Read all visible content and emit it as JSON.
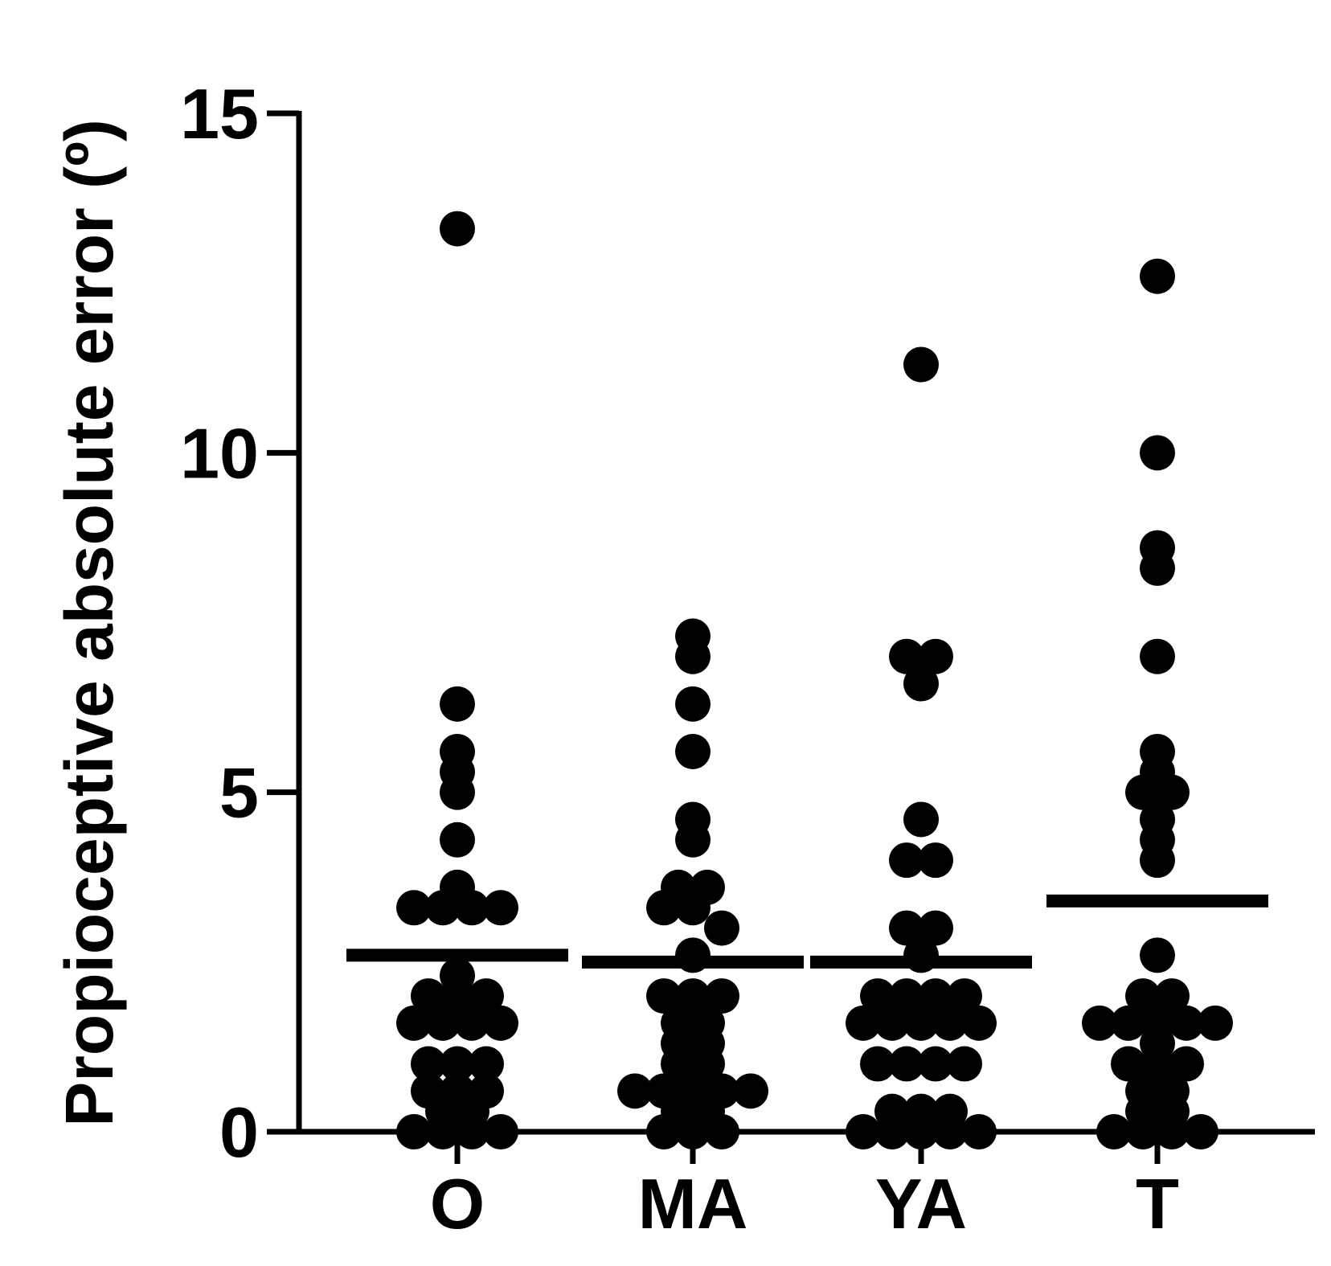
{
  "chart_data": {
    "type": "scatter",
    "ylabel": "Propioceptive absolute error (º)",
    "ylim": [
      0,
      15
    ],
    "yticks": [
      0,
      5,
      10,
      15
    ],
    "grid": false,
    "categories": [
      "O",
      "MA",
      "YA",
      "T"
    ],
    "colors": {
      "points": "#000000",
      "axis": "#000000"
    },
    "series": [
      {
        "category": "O",
        "mean": 2.6,
        "points": [
          13.3,
          6.3,
          5.6,
          5.3,
          5.0,
          4.3,
          3.6,
          3.3,
          3.3,
          3.3,
          3.3,
          2.3,
          2.0,
          2.0,
          2.0,
          1.6,
          1.6,
          1.6,
          1.6,
          1.0,
          1.0,
          1.0,
          0.6,
          0.6,
          0.6,
          0.3,
          0.3,
          0.0,
          0.0,
          0.0,
          0.0
        ]
      },
      {
        "category": "MA",
        "mean": 2.5,
        "points": [
          7.3,
          7.0,
          6.3,
          5.6,
          4.6,
          4.3,
          3.6,
          3.6,
          3.3,
          3.3,
          3.0,
          2.6,
          2.0,
          2.0,
          2.0,
          1.6,
          1.6,
          1.3,
          1.3,
          1.0,
          1.0,
          0.6,
          0.6,
          0.6,
          0.6,
          0.6,
          0.3,
          0.3,
          0.0,
          0.0,
          0.0
        ]
      },
      {
        "category": "YA",
        "mean": 2.5,
        "points": [
          11.3,
          7.0,
          7.0,
          6.6,
          4.6,
          4.0,
          4.0,
          3.0,
          3.0,
          2.6,
          2.0,
          2.0,
          2.0,
          2.0,
          1.6,
          1.6,
          1.6,
          1.6,
          1.6,
          1.0,
          1.0,
          1.0,
          1.0,
          0.3,
          0.3,
          0.3,
          0.0,
          0.0,
          0.0,
          0.0,
          0.0
        ]
      },
      {
        "category": "T",
        "mean": 3.4,
        "points": [
          12.6,
          10.0,
          8.6,
          8.3,
          7.0,
          5.6,
          5.3,
          5.0,
          5.0,
          4.6,
          4.3,
          4.0,
          2.6,
          2.0,
          2.0,
          1.6,
          1.6,
          1.6,
          1.6,
          1.6,
          1.3,
          1.0,
          1.0,
          1.0,
          0.6,
          0.6,
          0.3,
          0.3,
          0.0,
          0.0,
          0.0,
          0.0
        ]
      }
    ]
  }
}
